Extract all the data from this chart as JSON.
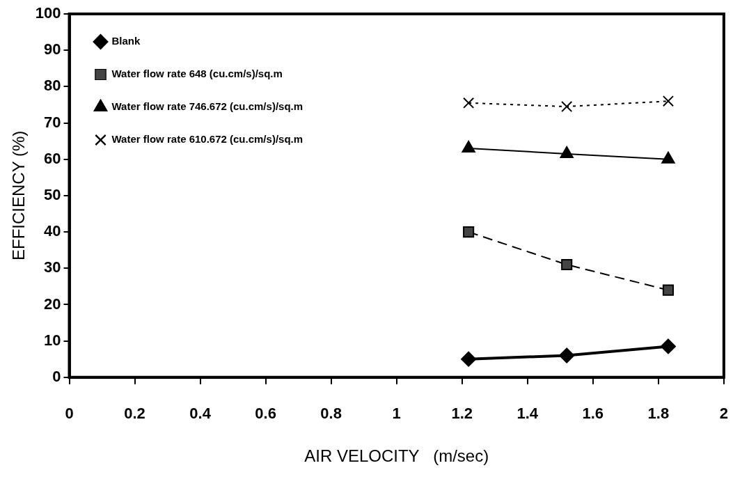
{
  "chart_data": {
    "type": "line",
    "xlabel": "AIR VELOCITY   (m/sec)",
    "ylabel": "EFFICIENCY (%)",
    "x": [
      1.22,
      1.52,
      1.83
    ],
    "xlim": [
      0,
      2
    ],
    "xticks": [
      0,
      0.2,
      0.4,
      0.6,
      0.8,
      1,
      1.2,
      1.4,
      1.6,
      1.8,
      2
    ],
    "ylim": [
      0,
      100
    ],
    "yticks": [
      0,
      10,
      20,
      30,
      40,
      50,
      60,
      70,
      80,
      90,
      100
    ],
    "grid": false,
    "legend": "top left",
    "series": [
      {
        "name": "Blank",
        "color": "#000000",
        "values": [
          5,
          6,
          8.5
        ],
        "marker": "diamond",
        "line_style": "solid"
      },
      {
        "name": "Water flow rate 648 (cu.cm/s)/sq.m",
        "color": "#000000",
        "values": [
          40,
          31,
          24
        ],
        "marker": "square",
        "line_style": "dashed"
      },
      {
        "name": "Water flow rate 746.672 (cu.cm/s)/sq.m",
        "color": "#000000",
        "values": [
          63,
          61.5,
          60
        ],
        "marker": "triangle",
        "line_style": "solid"
      },
      {
        "name": "Water flow rate 610.672 (cu.cm/s)/sq.m",
        "color": "#000000",
        "values": [
          75.5,
          74.5,
          76
        ],
        "marker": "cross",
        "line_style": "dotted"
      }
    ]
  }
}
